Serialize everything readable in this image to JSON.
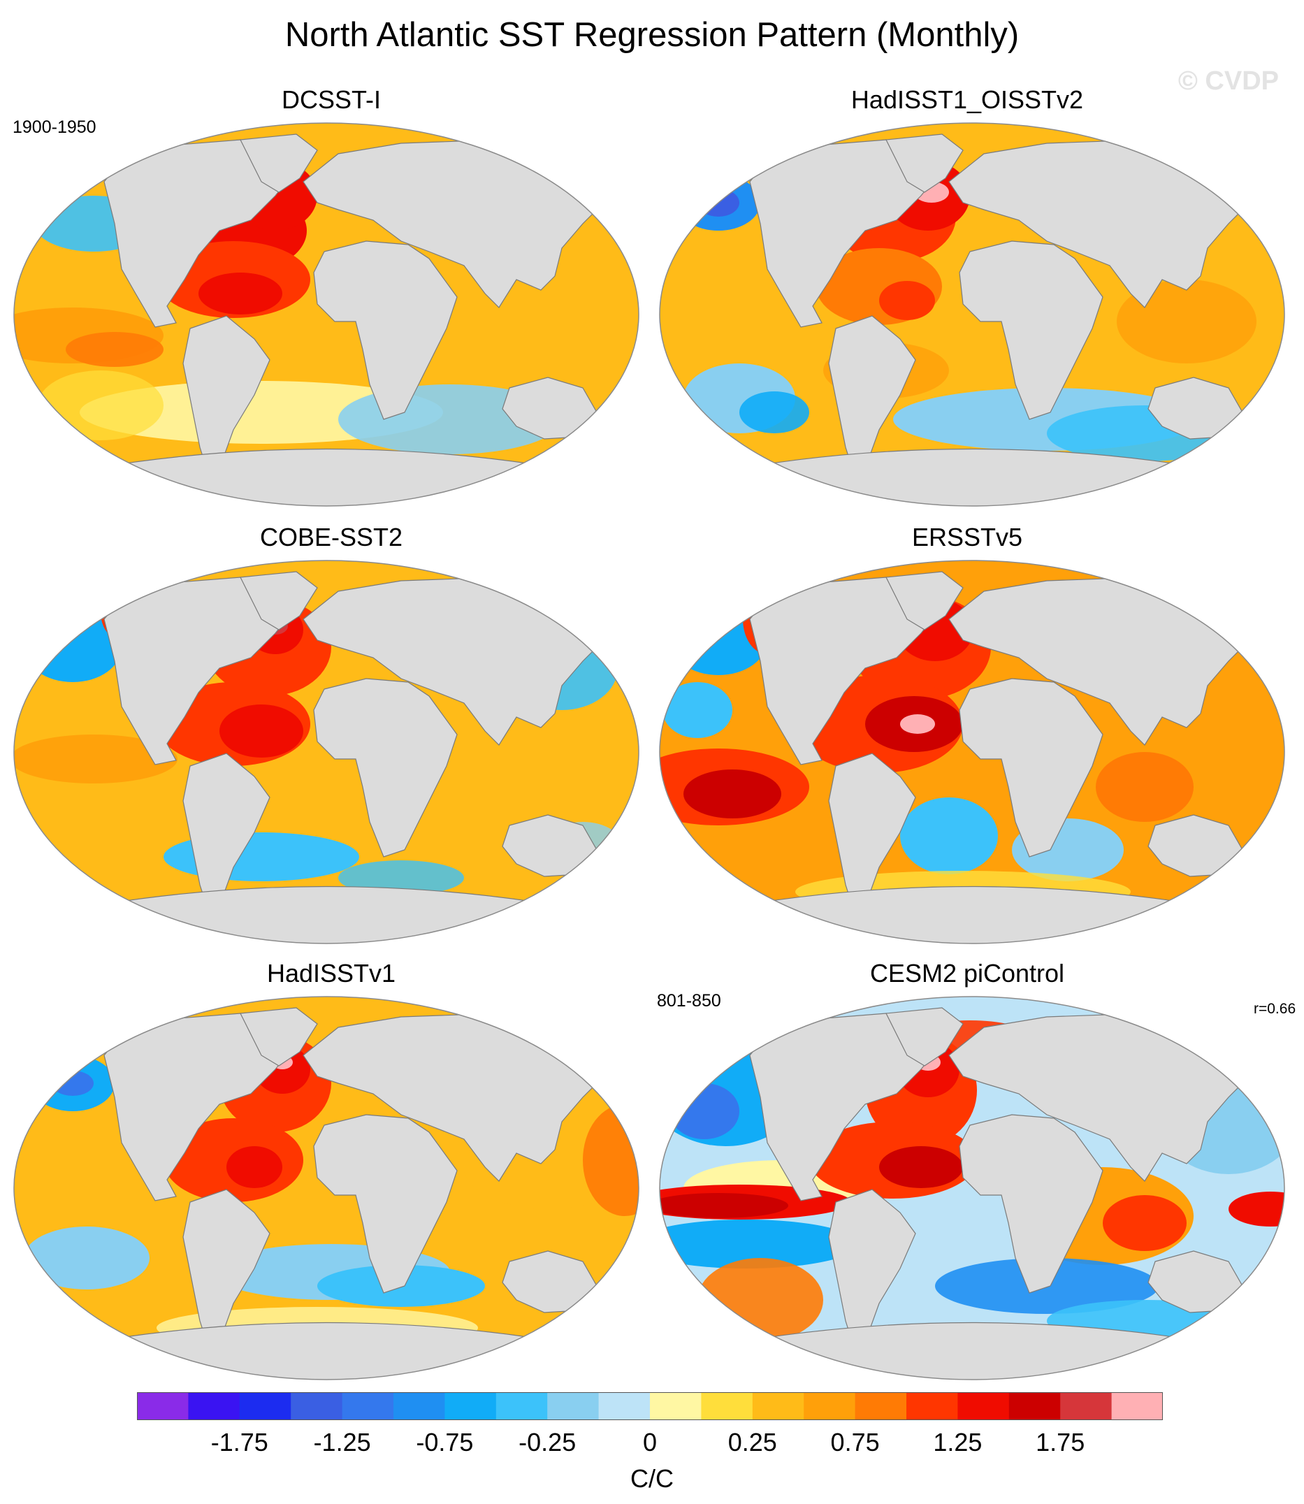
{
  "title": "North Atlantic SST Regression Pattern (Monthly)",
  "watermark": "© CVDP",
  "panels": [
    {
      "name": "DCSST-I",
      "period": "1900-1950",
      "corr": ""
    },
    {
      "name": "HadISST1_OISSTv2",
      "period": "",
      "corr": ""
    },
    {
      "name": "COBE-SST2",
      "period": "",
      "corr": ""
    },
    {
      "name": "ERSSTv5",
      "period": "",
      "corr": ""
    },
    {
      "name": "HadISSTv1",
      "period": "",
      "corr": ""
    },
    {
      "name": "CESM2 piControl",
      "period": "801-850",
      "corr": "r=0.66"
    }
  ],
  "colorbar": {
    "units": "C/C",
    "tick_labels": [
      "-1.75",
      "-1.25",
      "-0.75",
      "-0.25",
      "0",
      "0.25",
      "0.75",
      "1.25",
      "1.75"
    ],
    "colors": [
      "#8a2be8",
      "#3a13f2",
      "#1c2cf0",
      "#3a5fe3",
      "#3478ed",
      "#1f8ff2",
      "#11acf7",
      "#3cc2fa",
      "#89cff0",
      "#bde3f7",
      "#fff7a3",
      "#ffde3b",
      "#ffbb18",
      "#ffa00a",
      "#ff7b05",
      "#ff3600",
      "#f00c00",
      "#cc0000",
      "#d6363a",
      "#ffb0b4"
    ]
  },
  "map_colors": {
    "land": "#dcdcdc",
    "coast": "#7a7a7a",
    "frame": "#8a8a8a"
  }
}
